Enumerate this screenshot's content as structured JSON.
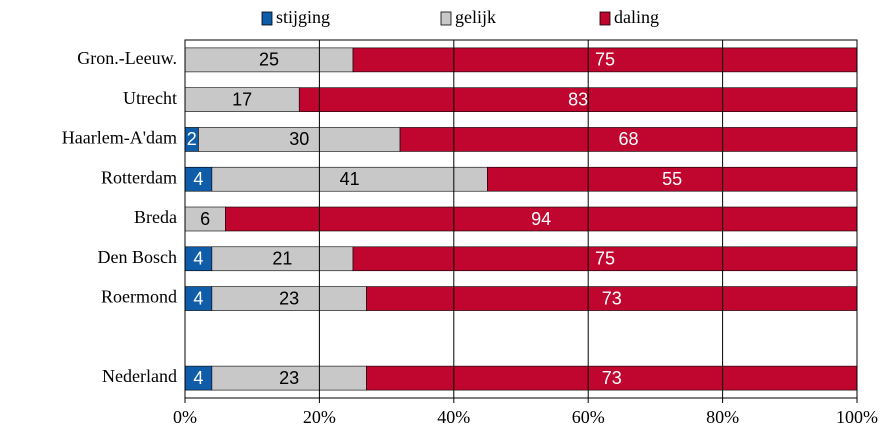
{
  "chart_data": {
    "type": "stacked-bar-horizontal",
    "categories": [
      "Gron.-Leeuw.",
      "Utrecht",
      "Haarlem-A'dam",
      "Rotterdam",
      "Breda",
      "Den Bosch",
      "Roermond",
      null,
      "Nederland"
    ],
    "series": [
      {
        "name": "stijging",
        "color": "#0f5ca8",
        "values": [
          null,
          null,
          2,
          4,
          null,
          4,
          4,
          null,
          4
        ]
      },
      {
        "name": "gelijk",
        "color": "#c8c8c8",
        "values": [
          25,
          17,
          30,
          41,
          6,
          21,
          23,
          null,
          23
        ]
      },
      {
        "name": "daling",
        "color": "#c0062f",
        "values": [
          75,
          83,
          68,
          55,
          94,
          75,
          73,
          null,
          73
        ]
      }
    ],
    "xlim": [
      0,
      100
    ],
    "xticks": [
      {
        "value": 0,
        "label": "0%"
      },
      {
        "value": 20,
        "label": "20%"
      },
      {
        "value": 40,
        "label": "40%"
      },
      {
        "value": 60,
        "label": "60%"
      },
      {
        "value": 80,
        "label": "80%"
      },
      {
        "value": 100,
        "label": "100%"
      }
    ],
    "grid": true,
    "legend": "top"
  }
}
